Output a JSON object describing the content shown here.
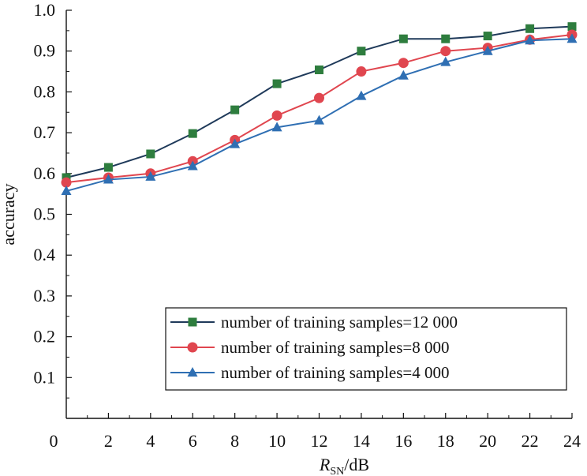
{
  "chart_data": {
    "type": "line",
    "title": "",
    "xlabel": {
      "main": "R",
      "sub": "SN",
      "rest": "/dB"
    },
    "ylabel": "accuracy",
    "x": [
      0,
      2,
      4,
      6,
      8,
      10,
      12,
      14,
      16,
      18,
      20,
      22,
      24
    ],
    "xlim": [
      0,
      24
    ],
    "ylim": [
      0,
      1.0
    ],
    "xticks": [
      "0",
      "2",
      "4",
      "6",
      "8",
      "10",
      "12",
      "14",
      "16",
      "18",
      "20",
      "22",
      "24"
    ],
    "yticks": [
      "0.1",
      "0.2",
      "0.3",
      "0.4",
      "0.5",
      "0.6",
      "0.7",
      "0.8",
      "0.9",
      "1.0"
    ],
    "grid": false,
    "legend_position": "bottom-right",
    "series": [
      {
        "name": "number of training samples=12 000",
        "color": "#1f3a5a",
        "marker_color": "#2e7d3e",
        "marker": "square",
        "values": [
          0.59,
          0.615,
          0.648,
          0.698,
          0.756,
          0.82,
          0.854,
          0.9,
          0.93,
          0.93,
          0.937,
          0.955,
          0.96
        ]
      },
      {
        "name": "number of training samples=8 000",
        "color": "#e0464f",
        "marker_color": "#e0464f",
        "marker": "circle",
        "values": [
          0.578,
          0.59,
          0.6,
          0.63,
          0.682,
          0.742,
          0.785,
          0.85,
          0.871,
          0.9,
          0.908,
          0.928,
          0.94
        ]
      },
      {
        "name": "number of training samples=4 000",
        "color": "#2f6fb3",
        "marker_color": "#2f6fb3",
        "marker": "triangle",
        "values": [
          0.557,
          0.585,
          0.592,
          0.618,
          0.672,
          0.713,
          0.73,
          0.79,
          0.84,
          0.873,
          0.9,
          0.926,
          0.93
        ]
      }
    ]
  }
}
